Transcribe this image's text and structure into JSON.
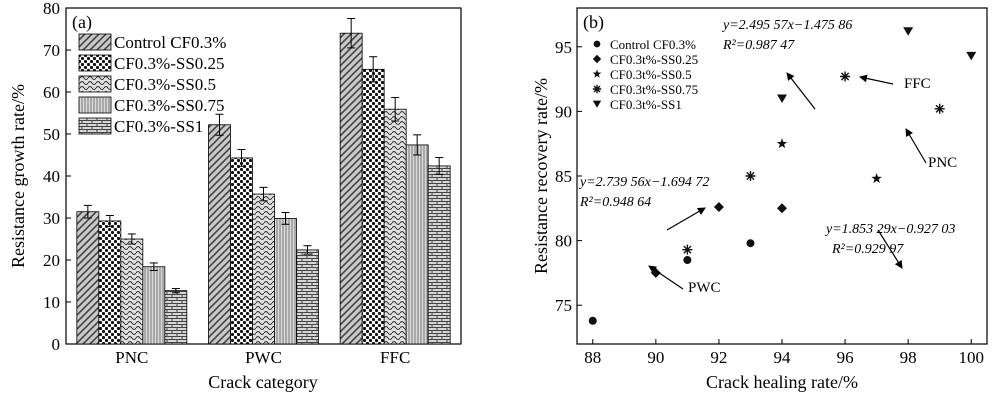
{
  "chart_data": [
    {
      "type": "bar",
      "panel_label": "(a)",
      "xlabel": "Crack category",
      "ylabel": "Resistance growth rate/%",
      "ylim": [
        0,
        80
      ],
      "yticks": [
        0,
        10,
        20,
        30,
        40,
        50,
        60,
        70,
        80
      ],
      "categories": [
        "PNC",
        "PWC",
        "FFC"
      ],
      "legend_position": "top-left",
      "series": [
        {
          "name": "Control CF0.3%",
          "pattern": "diagonal-hatch",
          "values": [
            31.5,
            52.2,
            74.0
          ],
          "errors": [
            1.5,
            2.5,
            3.5
          ]
        },
        {
          "name": "CF0.3%-SS0.25",
          "pattern": "dots",
          "values": [
            29.3,
            44.3,
            65.4
          ],
          "errors": [
            1.3,
            2.0,
            3.0
          ]
        },
        {
          "name": "CF0.3%-SS0.5",
          "pattern": "waves",
          "values": [
            25.0,
            35.7,
            55.9
          ],
          "errors": [
            1.2,
            1.6,
            2.8
          ]
        },
        {
          "name": "CF0.3%-SS0.75",
          "pattern": "vertical-lines",
          "values": [
            18.4,
            29.9,
            47.4
          ],
          "errors": [
            0.9,
            1.4,
            2.4
          ]
        },
        {
          "name": "CF0.3%-SS1",
          "pattern": "brick",
          "values": [
            12.7,
            22.4,
            42.4
          ],
          "errors": [
            0.5,
            1.0,
            2.0
          ]
        }
      ]
    },
    {
      "type": "scatter",
      "panel_label": "(b)",
      "xlabel": "Crack healing rate/%",
      "ylabel": "Resistance recovery rate/%",
      "xlim": [
        87.5,
        100.5
      ],
      "ylim": [
        72,
        98
      ],
      "xticks": [
        88,
        90,
        92,
        94,
        96,
        98,
        100
      ],
      "yticks": [
        75,
        80,
        85,
        90,
        95
      ],
      "legend_position": "top-left",
      "series": [
        {
          "name": "Control CF0.3%",
          "marker": "circle",
          "points": [
            [
              88,
              73.8
            ],
            [
              91,
              78.5
            ],
            [
              93,
              79.8
            ]
          ]
        },
        {
          "name": "CF0.3t%-SS0.25",
          "marker": "diamond",
          "points": [
            [
              90,
              77.5
            ],
            [
              92,
              82.6
            ],
            [
              94,
              82.5
            ]
          ]
        },
        {
          "name": "CF0.3t%-SS0.5",
          "marker": "star",
          "points": [
            [
              94,
              87.5
            ],
            [
              97,
              84.8
            ]
          ]
        },
        {
          "name": "CF0.3t%-SS0.75",
          "marker": "asterisk",
          "points": [
            [
              91,
              79.3
            ],
            [
              93,
              85.0
            ],
            [
              96,
              92.7
            ],
            [
              99,
              90.2
            ]
          ]
        },
        {
          "name": "CF0.3t%-SS1",
          "marker": "triangle-down",
          "points": [
            [
              94,
              91.0
            ],
            [
              98,
              96.2
            ],
            [
              100,
              94.3
            ]
          ]
        }
      ],
      "fit_lines": [
        {
          "label": "PWC",
          "color": "#e8212b",
          "x_range": [
            88,
            94
          ],
          "slope": 2.73956,
          "intercept": -1.69472,
          "eq1": "y=2.739 56x−1.694 72",
          "eq2": "R²=0.948 64"
        },
        {
          "label": "FFC",
          "color": "#1f77c4",
          "x_range": [
            91,
            98
          ],
          "slope": 2.49557,
          "intercept": -1.47586,
          "eq1": "y=2.495 57x−1.475 86",
          "eq2": "R²=0.987 47"
        },
        {
          "label": "PNC",
          "color": "#000000",
          "x_range": [
            93,
            100
          ],
          "slope": 1.85329,
          "intercept": -0.92703,
          "eq1": "y=1.853 29x−0.927 03",
          "eq2": "R²=0.929 97"
        }
      ]
    }
  ]
}
